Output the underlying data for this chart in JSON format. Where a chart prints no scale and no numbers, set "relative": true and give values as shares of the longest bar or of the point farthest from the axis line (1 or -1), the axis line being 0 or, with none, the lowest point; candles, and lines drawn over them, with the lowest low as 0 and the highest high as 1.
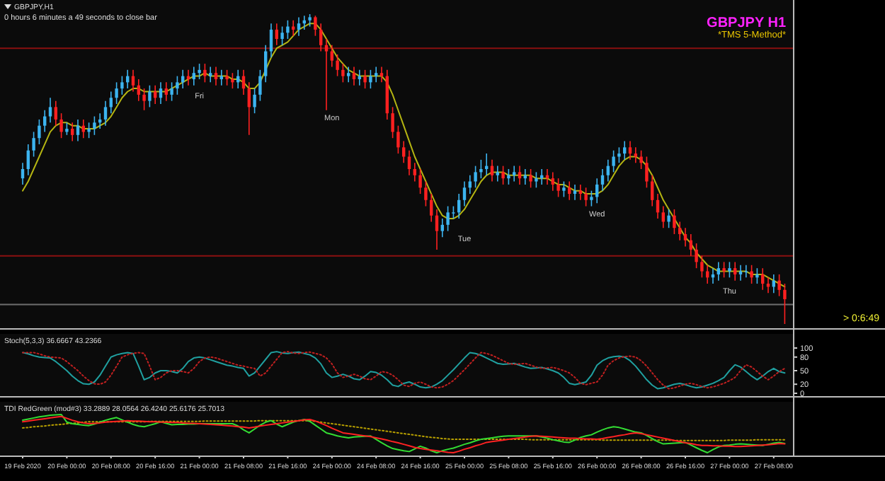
{
  "chart_data": [
    {
      "type": "candlestick",
      "title": "GBPJPY,H1",
      "subtitle": "0 hours 6 minutes a 49 seconds to close bar",
      "relative": true,
      "tick_labels": false,
      "colors": [
        "#3cb4f0",
        "#3cb4f0",
        "#3cb4f0",
        "#3cb4f0",
        "#3cb4f0",
        "#3cb4f0",
        "#ff2020",
        "#ff2020",
        "#3cb4f0",
        "#ff2020",
        "#3cb4f0",
        "#ff2020",
        "#3cb4f0",
        "#3cb4f0",
        "#3cb4f0",
        "#3cb4f0",
        "#3cb4f0",
        "#3cb4f0",
        "#3cb4f0",
        "#3cb4f0",
        "#ff2020",
        "#ff2020",
        "#ff2020",
        "#3cb4f0",
        "#ff2020",
        "#3cb4f0",
        "#ff2020",
        "#3cb4f0",
        "#3cb4f0",
        "#3cb4f0",
        "#ff2020",
        "#3cb4f0",
        "#3cb4f0",
        "#ff2020",
        "#3cb4f0",
        "#ff2020",
        "#3cb4f0",
        "#ff2020",
        "#ff2020",
        "#3cb4f0",
        "#ff2020",
        "#ff2020",
        "#3cb4f0",
        "#3cb4f0",
        "#3cb4f0",
        "#3cb4f0",
        "#ff2020",
        "#3cb4f0",
        "#3cb4f0",
        "#ff2020",
        "#3cb4f0",
        "#3cb4f0",
        "#3cb4f0",
        "#ff2020",
        "#ff2020",
        "#ff2020",
        "#ff2020",
        "#ff2020",
        "#ff2020",
        "#3cb4f0",
        "#ff2020",
        "#3cb4f0",
        "#ff2020",
        "#3cb4f0",
        "#3cb4f0",
        "#ff2020",
        "#ff2020",
        "#ff2020",
        "#ff2020",
        "#ff2020",
        "#ff2020",
        "#ff2020",
        "#ff2020",
        "#ff2020",
        "#ff2020",
        "#ff2020",
        "#3cb4f0",
        "#3cb4f0",
        "#3cb4f0",
        "#3cb4f0",
        "#3cb4f0",
        "#3cb4f0",
        "#3cb4f0",
        "#3cb4f0",
        "#3cb4f0",
        "#ff2020",
        "#3cb4f0",
        "#ff2020",
        "#3cb4f0",
        "#3cb4f0",
        "#ff2020",
        "#3cb4f0",
        "#ff2020",
        "#3cb4f0",
        "#3cb4f0",
        "#ff2020",
        "#ff2020",
        "#ff2020",
        "#3cb4f0",
        "#ff2020",
        "#3cb4f0",
        "#ff2020",
        "#ff2020",
        "#3cb4f0",
        "#3cb4f0",
        "#3cb4f0",
        "#3cb4f0",
        "#3cb4f0",
        "#3cb4f0",
        "#3cb4f0",
        "#ff2020",
        "#ff2020",
        "#ff2020",
        "#ff2020",
        "#ff2020",
        "#ff2020",
        "#ff2020",
        "#3cb4f0",
        "#ff2020",
        "#ff2020",
        "#ff2020",
        "#ff2020",
        "#ff2020",
        "#ff2020",
        "#ff2020",
        "#3cb4f0",
        "#3cb4f0",
        "#ff2020",
        "#3cb4f0",
        "#ff2020",
        "#3cb4f0",
        "#3cb4f0",
        "#ff2020",
        "#3cb4f0",
        "#ff2020",
        "#ff2020",
        "#3cb4f0",
        "#ff2020",
        "#ff2020"
      ],
      "annotations": [
        "GBPJPY H1",
        "*TMS 5-Method*",
        "> 0:6:49",
        "Fri",
        "Mon",
        "Tue",
        "Wed",
        "Thu"
      ],
      "ref_lines": [
        {
          "axis": "y",
          "value": 0.89,
          "color": "#8b1010"
        },
        {
          "axis": "y",
          "value": 0.22,
          "color": "#8b1010"
        },
        {
          "axis": "y",
          "value": 0.063,
          "color": "#6e6e6e"
        }
      ],
      "categories": [
        null,
        null,
        null,
        null,
        null,
        null,
        null,
        null,
        null,
        null,
        null,
        null,
        null,
        null,
        null,
        null,
        null,
        null,
        null,
        null,
        null,
        null,
        null,
        null,
        null,
        null,
        null,
        null,
        null,
        null,
        null,
        null,
        null,
        null,
        null,
        null,
        null,
        null,
        null,
        null,
        null,
        null,
        null,
        null,
        null,
        null,
        null,
        null,
        null,
        null,
        null,
        null,
        null,
        null,
        null,
        null,
        null,
        null,
        null,
        null,
        null,
        null,
        null,
        null,
        null,
        null,
        null,
        null,
        null,
        null,
        null,
        null,
        null,
        null,
        null,
        null,
        null,
        null,
        null,
        null,
        null,
        null,
        null,
        null,
        null,
        null,
        null,
        null,
        null,
        null,
        null,
        null,
        null,
        null,
        null,
        null,
        null,
        null,
        null,
        null,
        null,
        null,
        null,
        null,
        null,
        null,
        null,
        null,
        null,
        null,
        null,
        null,
        null,
        null,
        null,
        null,
        null,
        null,
        null,
        null,
        null,
        null,
        null,
        null,
        null,
        null,
        null,
        null,
        null,
        null,
        null,
        null,
        null,
        null,
        null,
        null,
        null,
        null,
        null
      ],
      "ohlc": [
        [
          0.47,
          0.52,
          0.45,
          0.5
        ],
        [
          0.5,
          0.58,
          0.48,
          0.56
        ],
        [
          0.56,
          0.62,
          0.54,
          0.6
        ],
        [
          0.6,
          0.66,
          0.58,
          0.64
        ],
        [
          0.64,
          0.69,
          0.62,
          0.67
        ],
        [
          0.67,
          0.73,
          0.65,
          0.7
        ],
        [
          0.7,
          0.72,
          0.64,
          0.66
        ],
        [
          0.66,
          0.68,
          0.6,
          0.62
        ],
        [
          0.62,
          0.65,
          0.61,
          0.63
        ],
        [
          0.63,
          0.65,
          0.59,
          0.61
        ],
        [
          0.61,
          0.66,
          0.59,
          0.64
        ],
        [
          0.64,
          0.66,
          0.6,
          0.62
        ],
        [
          0.62,
          0.65,
          0.6,
          0.63
        ],
        [
          0.63,
          0.67,
          0.61,
          0.65
        ],
        [
          0.65,
          0.68,
          0.63,
          0.66
        ],
        [
          0.66,
          0.72,
          0.64,
          0.7
        ],
        [
          0.7,
          0.75,
          0.68,
          0.73
        ],
        [
          0.73,
          0.78,
          0.71,
          0.76
        ],
        [
          0.76,
          0.8,
          0.74,
          0.78
        ],
        [
          0.78,
          0.82,
          0.76,
          0.8
        ],
        [
          0.8,
          0.82,
          0.75,
          0.77
        ],
        [
          0.77,
          0.79,
          0.72,
          0.74
        ],
        [
          0.74,
          0.76,
          0.69,
          0.72
        ],
        [
          0.72,
          0.77,
          0.7,
          0.75
        ],
        [
          0.75,
          0.77,
          0.71,
          0.73
        ],
        [
          0.73,
          0.78,
          0.71,
          0.76
        ],
        [
          0.76,
          0.78,
          0.72,
          0.74
        ],
        [
          0.74,
          0.78,
          0.72,
          0.76
        ],
        [
          0.76,
          0.8,
          0.74,
          0.78
        ],
        [
          0.78,
          0.82,
          0.76,
          0.8
        ],
        [
          0.8,
          0.82,
          0.77,
          0.79
        ],
        [
          0.79,
          0.83,
          0.77,
          0.81
        ],
        [
          0.81,
          0.84,
          0.79,
          0.82
        ],
        [
          0.82,
          0.84,
          0.78,
          0.8
        ],
        [
          0.8,
          0.83,
          0.78,
          0.81
        ],
        [
          0.81,
          0.83,
          0.77,
          0.79
        ],
        [
          0.79,
          0.82,
          0.77,
          0.8
        ],
        [
          0.8,
          0.82,
          0.77,
          0.79
        ],
        [
          0.79,
          0.81,
          0.76,
          0.78
        ],
        [
          0.78,
          0.82,
          0.76,
          0.8
        ],
        [
          0.8,
          0.82,
          0.74,
          0.76
        ],
        [
          0.76,
          0.78,
          0.61,
          0.7
        ],
        [
          0.7,
          0.76,
          0.68,
          0.74
        ],
        [
          0.74,
          0.82,
          0.72,
          0.8
        ],
        [
          0.8,
          0.9,
          0.78,
          0.88
        ],
        [
          0.88,
          0.97,
          0.86,
          0.95
        ],
        [
          0.95,
          0.97,
          0.9,
          0.92
        ],
        [
          0.92,
          0.96,
          0.9,
          0.94
        ],
        [
          0.94,
          0.98,
          0.92,
          0.96
        ],
        [
          0.96,
          0.98,
          0.93,
          0.95
        ],
        [
          0.95,
          0.99,
          0.93,
          0.97
        ],
        [
          0.97,
          0.995,
          0.95,
          0.98
        ],
        [
          0.98,
          1.0,
          0.96,
          0.99
        ],
        [
          0.99,
          0.995,
          0.93,
          0.95
        ],
        [
          0.95,
          0.97,
          0.88,
          0.9
        ],
        [
          0.9,
          0.92,
          0.69,
          0.88
        ],
        [
          0.88,
          0.9,
          0.83,
          0.85
        ],
        [
          0.85,
          0.87,
          0.8,
          0.82
        ],
        [
          0.82,
          0.84,
          0.78,
          0.8
        ],
        [
          0.8,
          0.83,
          0.78,
          0.81
        ],
        [
          0.81,
          0.83,
          0.77,
          0.79
        ],
        [
          0.79,
          0.82,
          0.77,
          0.8
        ],
        [
          0.8,
          0.82,
          0.76,
          0.78
        ],
        [
          0.78,
          0.82,
          0.76,
          0.8
        ],
        [
          0.8,
          0.83,
          0.78,
          0.81
        ],
        [
          0.81,
          0.83,
          0.78,
          0.8
        ],
        [
          0.8,
          0.82,
          0.66,
          0.68
        ],
        [
          0.68,
          0.7,
          0.6,
          0.62
        ],
        [
          0.62,
          0.64,
          0.55,
          0.57
        ],
        [
          0.57,
          0.59,
          0.52,
          0.54
        ],
        [
          0.54,
          0.56,
          0.48,
          0.5
        ],
        [
          0.5,
          0.52,
          0.46,
          0.48
        ],
        [
          0.48,
          0.5,
          0.42,
          0.44
        ],
        [
          0.44,
          0.46,
          0.38,
          0.4
        ],
        [
          0.4,
          0.42,
          0.33,
          0.35
        ],
        [
          0.35,
          0.37,
          0.24,
          0.3
        ],
        [
          0.3,
          0.34,
          0.28,
          0.32
        ],
        [
          0.32,
          0.38,
          0.3,
          0.36
        ],
        [
          0.36,
          0.38,
          0.34,
          0.36
        ],
        [
          0.36,
          0.42,
          0.34,
          0.4
        ],
        [
          0.4,
          0.46,
          0.38,
          0.44
        ],
        [
          0.44,
          0.48,
          0.42,
          0.46
        ],
        [
          0.46,
          0.51,
          0.44,
          0.49
        ],
        [
          0.49,
          0.53,
          0.47,
          0.5
        ],
        [
          0.5,
          0.55,
          0.48,
          0.51
        ],
        [
          0.51,
          0.53,
          0.46,
          0.48
        ],
        [
          0.48,
          0.51,
          0.46,
          0.49
        ],
        [
          0.49,
          0.51,
          0.45,
          0.47
        ],
        [
          0.47,
          0.5,
          0.45,
          0.48
        ],
        [
          0.48,
          0.51,
          0.46,
          0.49
        ],
        [
          0.49,
          0.51,
          0.45,
          0.47
        ],
        [
          0.47,
          0.5,
          0.45,
          0.48
        ],
        [
          0.48,
          0.5,
          0.44,
          0.46
        ],
        [
          0.46,
          0.49,
          0.44,
          0.47
        ],
        [
          0.47,
          0.5,
          0.45,
          0.48
        ],
        [
          0.48,
          0.5,
          0.45,
          0.47
        ],
        [
          0.47,
          0.49,
          0.43,
          0.45
        ],
        [
          0.45,
          0.47,
          0.41,
          0.43
        ],
        [
          0.43,
          0.46,
          0.41,
          0.44
        ],
        [
          0.44,
          0.46,
          0.4,
          0.42
        ],
        [
          0.42,
          0.45,
          0.4,
          0.43
        ],
        [
          0.43,
          0.45,
          0.4,
          0.42
        ],
        [
          0.42,
          0.44,
          0.38,
          0.4
        ],
        [
          0.4,
          0.43,
          0.38,
          0.41
        ],
        [
          0.41,
          0.47,
          0.39,
          0.45
        ],
        [
          0.45,
          0.5,
          0.43,
          0.48
        ],
        [
          0.48,
          0.53,
          0.46,
          0.51
        ],
        [
          0.51,
          0.56,
          0.49,
          0.54
        ],
        [
          0.54,
          0.57,
          0.52,
          0.55
        ],
        [
          0.55,
          0.59,
          0.53,
          0.57
        ],
        [
          0.57,
          0.59,
          0.53,
          0.55
        ],
        [
          0.55,
          0.57,
          0.52,
          0.54
        ],
        [
          0.54,
          0.56,
          0.5,
          0.52
        ],
        [
          0.52,
          0.54,
          0.44,
          0.46
        ],
        [
          0.46,
          0.48,
          0.38,
          0.4
        ],
        [
          0.4,
          0.42,
          0.34,
          0.36
        ],
        [
          0.36,
          0.38,
          0.31,
          0.33
        ],
        [
          0.33,
          0.37,
          0.31,
          0.35
        ],
        [
          0.35,
          0.37,
          0.29,
          0.31
        ],
        [
          0.31,
          0.33,
          0.27,
          0.29
        ],
        [
          0.29,
          0.31,
          0.25,
          0.27
        ],
        [
          0.27,
          0.29,
          0.22,
          0.24
        ],
        [
          0.24,
          0.26,
          0.18,
          0.2
        ],
        [
          0.2,
          0.22,
          0.15,
          0.17
        ],
        [
          0.17,
          0.19,
          0.13,
          0.15
        ],
        [
          0.15,
          0.18,
          0.13,
          0.16
        ],
        [
          0.16,
          0.2,
          0.14,
          0.18
        ],
        [
          0.18,
          0.2,
          0.15,
          0.17
        ],
        [
          0.17,
          0.2,
          0.15,
          0.18
        ],
        [
          0.18,
          0.2,
          0.14,
          0.16
        ],
        [
          0.16,
          0.19,
          0.14,
          0.17
        ],
        [
          0.17,
          0.19,
          0.15,
          0.17
        ],
        [
          0.17,
          0.19,
          0.13,
          0.15
        ],
        [
          0.15,
          0.18,
          0.13,
          0.16
        ],
        [
          0.16,
          0.18,
          0.11,
          0.13
        ],
        [
          0.13,
          0.15,
          0.1,
          0.12
        ],
        [
          0.12,
          0.16,
          0.1,
          0.14
        ],
        [
          0.14,
          0.16,
          0.09,
          0.11
        ],
        [
          0.11,
          0.13,
          0.0,
          0.08
        ]
      ],
      "series": [
        {
          "type": "line",
          "color": "#b5b512",
          "values": [
            0.43,
            0.46,
            0.5,
            0.54,
            0.58,
            0.62,
            0.64,
            0.65,
            0.65,
            0.64,
            0.64,
            0.63,
            0.63,
            0.63,
            0.64,
            0.65,
            0.67,
            0.7,
            0.73,
            0.75,
            0.76,
            0.76,
            0.75,
            0.75,
            0.75,
            0.75,
            0.75,
            0.76,
            0.77,
            0.78,
            0.79,
            0.8,
            0.8,
            0.81,
            0.8,
            0.8,
            0.8,
            0.8,
            0.79,
            0.79,
            0.78,
            0.76,
            0.76,
            0.78,
            0.82,
            0.86,
            0.89,
            0.9,
            0.91,
            0.93,
            0.95,
            0.96,
            0.97,
            0.97,
            0.95,
            0.92,
            0.89,
            0.86,
            0.84,
            0.82,
            0.81,
            0.8,
            0.8,
            0.8,
            0.8,
            0.8,
            0.78,
            0.74,
            0.69,
            0.64,
            0.59,
            0.54,
            0.5,
            0.46,
            0.42,
            0.38,
            0.35,
            0.34,
            0.34,
            0.35,
            0.37,
            0.4,
            0.43,
            0.46,
            0.48,
            0.49,
            0.49,
            0.49,
            0.48,
            0.48,
            0.48,
            0.48,
            0.48,
            0.47,
            0.47,
            0.47,
            0.46,
            0.45,
            0.45,
            0.44,
            0.43,
            0.43,
            0.42,
            0.42,
            0.42,
            0.43,
            0.45,
            0.48,
            0.51,
            0.53,
            0.54,
            0.54,
            0.53,
            0.51,
            0.48,
            0.44,
            0.4,
            0.37,
            0.34,
            0.31,
            0.28,
            0.26,
            0.23,
            0.21,
            0.19,
            0.18,
            0.17,
            0.17,
            0.17,
            0.17,
            0.17,
            0.17,
            0.16,
            0.16,
            0.16,
            0.15,
            0.14,
            0.13,
            0.12
          ]
        }
      ]
    },
    {
      "type": "line",
      "title": "Stoch(5,3,3) 36.6667 43.2366",
      "ylim": [
        0,
        100
      ],
      "yticks": [
        0,
        20,
        50,
        80,
        100
      ],
      "tick_labels": "y",
      "categories": [
        null,
        null,
        null,
        null,
        null,
        null,
        null,
        null,
        null,
        null,
        null,
        null,
        null,
        null,
        null,
        null,
        null,
        null,
        null,
        null,
        null,
        null,
        null,
        null,
        null,
        null,
        null,
        null,
        null,
        null,
        null,
        null,
        null,
        null,
        null,
        null,
        null,
        null,
        null,
        null,
        null,
        null,
        null,
        null,
        null,
        null,
        null,
        null,
        null,
        null,
        null,
        null,
        null,
        null,
        null,
        null,
        null,
        null,
        null,
        null,
        null,
        null,
        null,
        null,
        null,
        null,
        null,
        null,
        null,
        null,
        null,
        null,
        null,
        null,
        null,
        null,
        null,
        null,
        null,
        null,
        null,
        null,
        null,
        null,
        null,
        null,
        null,
        null,
        null,
        null,
        null,
        null,
        null,
        null,
        null,
        null,
        null,
        null,
        null,
        null,
        null,
        null,
        null,
        null,
        null,
        null,
        null,
        null,
        null,
        null,
        null,
        null,
        null,
        null,
        null,
        null,
        null,
        null,
        null,
        null,
        null,
        null,
        null,
        null,
        null,
        null,
        null,
        null,
        null,
        null,
        null,
        null,
        null,
        null,
        null,
        null,
        null,
        null,
        null
      ],
      "series": [
        {
          "color": "#20a0a0",
          "line_style": "solid",
          "values": [
            90,
            87,
            83,
            80,
            79,
            78,
            70,
            60,
            50,
            38,
            28,
            21,
            20,
            25,
            40,
            60,
            80,
            85,
            88,
            90,
            88,
            60,
            30,
            35,
            45,
            50,
            50,
            48,
            45,
            55,
            70,
            78,
            80,
            78,
            74,
            70,
            66,
            62,
            60,
            57,
            55,
            38,
            45,
            60,
            75,
            90,
            92,
            89,
            88,
            90,
            91,
            88,
            85,
            78,
            65,
            45,
            35,
            38,
            42,
            38,
            32,
            30,
            38,
            48,
            46,
            40,
            30,
            18,
            15,
            22,
            25,
            20,
            14,
            12,
            14,
            20,
            28,
            40,
            52,
            65,
            78,
            90,
            88,
            84,
            78,
            72,
            66,
            64,
            65,
            66,
            62,
            58,
            55,
            56,
            57,
            54,
            50,
            45,
            35,
            22,
            19,
            22,
            25,
            40,
            62,
            72,
            78,
            81,
            82,
            80,
            72,
            60,
            45,
            30,
            18,
            10,
            12,
            16,
            20,
            22,
            19,
            15,
            12,
            14,
            18,
            22,
            28,
            35,
            50,
            63,
            58,
            48,
            38,
            30,
            38,
            48,
            55,
            48,
            45
          ]
        },
        {
          "color": "#c02020",
          "line_style": "dotted",
          "values": [
            90,
            90,
            90,
            87,
            83,
            80,
            79,
            78,
            70,
            60,
            50,
            38,
            28,
            21,
            20,
            25,
            40,
            60,
            80,
            85,
            88,
            90,
            88,
            60,
            30,
            35,
            45,
            50,
            50,
            48,
            45,
            55,
            70,
            78,
            80,
            78,
            74,
            70,
            66,
            62,
            60,
            57,
            55,
            38,
            45,
            60,
            75,
            90,
            92,
            89,
            88,
            90,
            91,
            88,
            85,
            78,
            65,
            45,
            35,
            38,
            42,
            38,
            32,
            30,
            38,
            48,
            46,
            40,
            30,
            18,
            15,
            22,
            25,
            20,
            14,
            12,
            14,
            20,
            28,
            40,
            52,
            65,
            78,
            90,
            88,
            84,
            78,
            72,
            66,
            64,
            65,
            66,
            62,
            58,
            55,
            56,
            57,
            54,
            50,
            45,
            35,
            22,
            19,
            22,
            25,
            40,
            62,
            72,
            78,
            81,
            82,
            80,
            72,
            60,
            45,
            30,
            18,
            10,
            12,
            16,
            20,
            22,
            19,
            15,
            12,
            14,
            18,
            22,
            28,
            35,
            50,
            63,
            58,
            48,
            38,
            30,
            38,
            48,
            55
          ]
        }
      ]
    },
    {
      "type": "line",
      "title": "TDI RedGreen (mod#3) 33.2889 28.0564 26.4240 25.6176 25.7013",
      "relative": true,
      "tick_labels": "x",
      "categories": [
        "19 Feb 2020",
        null,
        null,
        null,
        null,
        null,
        null,
        null,
        "20 Feb 00:00",
        null,
        null,
        null,
        null,
        null,
        null,
        null,
        "20 Feb 08:00",
        null,
        null,
        null,
        null,
        null,
        null,
        null,
        "20 Feb 16:00",
        null,
        null,
        null,
        null,
        null,
        null,
        null,
        "21 Feb 00:00",
        null,
        null,
        null,
        null,
        null,
        null,
        null,
        "21 Feb 08:00",
        null,
        null,
        null,
        null,
        null,
        null,
        null,
        "21 Feb 16:00",
        null,
        null,
        null,
        null,
        null,
        null,
        null,
        "24 Feb 00:00",
        null,
        null,
        null,
        null,
        null,
        null,
        null,
        "24 Feb 08:00",
        null,
        null,
        null,
        null,
        null,
        null,
        null,
        "24 Feb 16:00",
        null,
        null,
        null,
        null,
        null,
        null,
        null,
        "25 Feb 00:00",
        null,
        null,
        null,
        null,
        null,
        null,
        null,
        "25 Feb 08:00",
        null,
        null,
        null,
        null,
        null,
        null,
        null,
        "25 Feb 16:00",
        null,
        null,
        null,
        null,
        null,
        null,
        null,
        "26 Feb 00:00",
        null,
        null,
        null,
        null,
        null,
        null,
        null,
        "26 Feb 08:00",
        null,
        null,
        null,
        null,
        null,
        null,
        null,
        "26 Feb 16:00",
        null,
        null,
        null,
        null,
        null,
        null,
        null,
        "27 Feb 00:00",
        null,
        null,
        null,
        null,
        null,
        null,
        null,
        "27 Feb 08:00",
        null,
        null
      ],
      "series": [
        {
          "color": "#b8a000",
          "line_style": "dotted",
          "values": [
            0.65,
            0.66,
            0.68,
            0.69,
            0.7,
            0.72,
            0.73,
            0.74,
            0.76,
            0.77,
            0.78,
            0.8,
            0.81,
            0.81,
            0.81,
            0.81,
            0.81,
            0.81,
            0.81,
            0.81,
            0.81,
            0.81,
            0.81,
            0.82,
            0.82,
            0.82,
            0.82,
            0.82,
            0.82,
            0.82,
            0.82,
            0.82,
            0.82,
            0.83,
            0.83,
            0.83,
            0.83,
            0.83,
            0.83,
            0.83,
            0.83,
            0.83,
            0.83,
            0.84,
            0.84,
            0.84,
            0.84,
            0.84,
            0.84,
            0.84,
            0.84,
            0.84,
            0.84,
            0.82,
            0.8,
            0.78,
            0.76,
            0.74,
            0.72,
            0.7,
            0.68,
            0.66,
            0.64,
            0.62,
            0.6,
            0.58,
            0.56,
            0.54,
            0.52,
            0.5,
            0.48,
            0.46,
            0.44,
            0.42,
            0.4,
            0.39,
            0.37,
            0.36,
            0.35,
            0.35,
            0.35,
            0.35,
            0.35,
            0.35,
            0.35,
            0.35,
            0.35,
            0.35,
            0.35,
            0.35,
            0.35,
            0.35,
            0.34,
            0.34,
            0.34,
            0.34,
            0.34,
            0.34,
            0.34,
            0.34,
            0.34,
            0.34,
            0.34,
            0.34,
            0.34,
            0.33,
            0.33,
            0.33,
            0.33,
            0.33,
            0.33,
            0.33,
            0.33,
            0.33,
            0.33,
            0.33,
            0.33,
            0.33,
            0.32,
            0.32,
            0.32,
            0.32,
            0.32,
            0.32,
            0.32,
            0.32,
            0.32,
            0.32,
            0.33,
            0.33,
            0.33,
            0.33,
            0.33,
            0.34,
            0.34,
            0.34,
            0.34,
            0.34,
            0.34
          ]
        },
        {
          "color": "#33dd33",
          "line_style": "solid",
          "values": [
            0.85,
            0.88,
            0.91,
            0.94,
            0.96,
            0.98,
            0.99,
            1.0,
            0.8,
            0.76,
            0.74,
            0.72,
            0.71,
            0.75,
            0.8,
            0.85,
            0.89,
            0.92,
            0.86,
            0.8,
            0.74,
            0.7,
            0.68,
            0.72,
            0.76,
            0.81,
            0.77,
            0.73,
            0.74,
            0.74,
            0.75,
            0.75,
            0.76,
            0.76,
            0.76,
            0.76,
            0.76,
            0.76,
            0.76,
            0.7,
            0.6,
            0.52,
            0.62,
            0.72,
            0.8,
            0.84,
            0.75,
            0.68,
            0.74,
            0.8,
            0.84,
            0.87,
            0.82,
            0.72,
            0.62,
            0.52,
            0.48,
            0.44,
            0.41,
            0.39,
            0.41,
            0.42,
            0.43,
            0.44,
            0.35,
            0.26,
            0.18,
            0.11,
            0.08,
            0.05,
            0.03,
            0.1,
            0.17,
            0.12,
            0.05,
            0.0,
            0.05,
            0.09,
            0.12,
            0.17,
            0.22,
            0.26,
            0.31,
            0.35,
            0.37,
            0.39,
            0.41,
            0.43,
            0.44,
            0.44,
            0.44,
            0.44,
            0.44,
            0.44,
            0.41,
            0.38,
            0.34,
            0.31,
            0.28,
            0.27,
            0.33,
            0.4,
            0.44,
            0.47,
            0.54,
            0.6,
            0.65,
            0.68,
            0.66,
            0.62,
            0.58,
            0.54,
            0.52,
            0.45,
            0.37,
            0.29,
            0.23,
            0.24,
            0.25,
            0.26,
            0.27,
            0.2,
            0.13,
            0.06,
            0.0,
            0.08,
            0.15,
            0.19,
            0.2,
            0.22,
            0.23,
            0.22,
            0.21,
            0.2,
            0.19,
            0.22,
            0.25,
            0.27,
            0.24
          ]
        },
        {
          "color": "#ff2222",
          "line_style": "solid",
          "values": [
            0.81,
            0.83,
            0.85,
            0.87,
            0.89,
            0.91,
            0.93,
            0.95,
            0.9,
            0.85,
            0.81,
            0.78,
            0.76,
            0.77,
            0.78,
            0.8,
            0.81,
            0.82,
            0.83,
            0.84,
            0.83,
            0.83,
            0.82,
            0.81,
            0.81,
            0.8,
            0.8,
            0.79,
            0.79,
            0.78,
            0.77,
            0.77,
            0.76,
            0.75,
            0.74,
            0.73,
            0.72,
            0.71,
            0.7,
            0.68,
            0.67,
            0.65,
            0.67,
            0.7,
            0.72,
            0.74,
            0.76,
            0.78,
            0.8,
            0.82,
            0.84,
            0.86,
            0.87,
            0.83,
            0.77,
            0.71,
            0.64,
            0.58,
            0.52,
            0.5,
            0.48,
            0.46,
            0.44,
            0.42,
            0.39,
            0.36,
            0.33,
            0.29,
            0.26,
            0.22,
            0.18,
            0.14,
            0.11,
            0.09,
            0.07,
            0.05,
            0.03,
            0.01,
            0.0,
            0.04,
            0.09,
            0.13,
            0.18,
            0.22,
            0.27,
            0.29,
            0.31,
            0.33,
            0.35,
            0.37,
            0.39,
            0.41,
            0.43,
            0.44,
            0.43,
            0.42,
            0.41,
            0.4,
            0.39,
            0.38,
            0.38,
            0.37,
            0.36,
            0.36,
            0.35,
            0.37,
            0.4,
            0.42,
            0.45,
            0.47,
            0.5,
            0.52,
            0.5,
            0.47,
            0.44,
            0.41,
            0.38,
            0.35,
            0.32,
            0.29,
            0.26,
            0.24,
            0.21,
            0.19,
            0.19,
            0.18,
            0.18,
            0.17,
            0.17,
            0.16,
            0.16,
            0.17,
            0.18,
            0.19,
            0.2,
            0.21,
            0.22,
            0.24,
            0.23
          ]
        }
      ]
    }
  ]
}
